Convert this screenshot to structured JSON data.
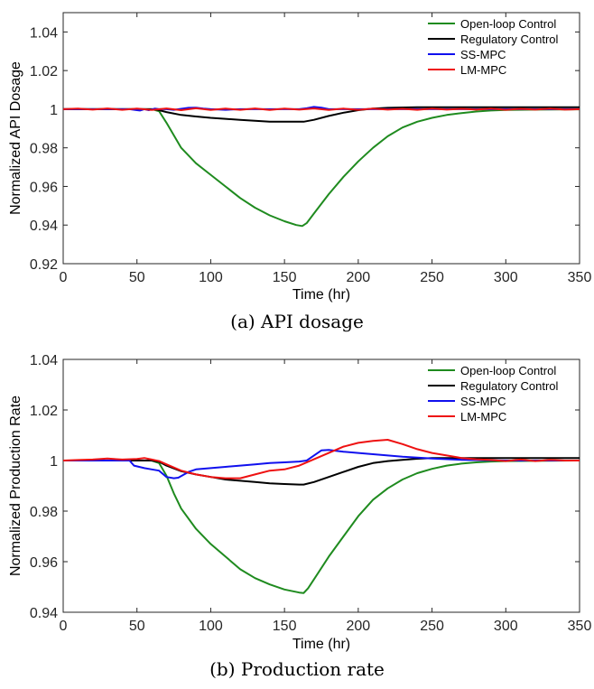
{
  "chart_data": [
    {
      "type": "line",
      "caption": "(a)  API dosage",
      "xlabel": "Time (hr)",
      "ylabel": "Normalized API Dosage",
      "xlim": [
        0,
        350
      ],
      "ylim": [
        0.92,
        1.05
      ],
      "xticks": [
        "0",
        "50",
        "100",
        "150",
        "200",
        "250",
        "300",
        "350"
      ],
      "yticks": [
        "0.92",
        "0.94",
        "0.96",
        "0.98",
        "1",
        "1.02",
        "1.04"
      ],
      "grid": false,
      "legend_position": "top-right",
      "series": [
        {
          "name": "Open-loop Control",
          "color": "#1f8b1f",
          "x": [
            0,
            60,
            65,
            70,
            80,
            90,
            100,
            110,
            120,
            130,
            140,
            150,
            158,
            162,
            165,
            170,
            180,
            190,
            200,
            210,
            220,
            230,
            240,
            250,
            260,
            270,
            280,
            290,
            300,
            320,
            350
          ],
          "y": [
            1,
            1,
            0.999,
            0.993,
            0.98,
            0.972,
            0.966,
            0.96,
            0.954,
            0.949,
            0.945,
            0.942,
            0.94,
            0.9395,
            0.941,
            0.946,
            0.956,
            0.965,
            0.973,
            0.98,
            0.986,
            0.9905,
            0.9935,
            0.9955,
            0.997,
            0.998,
            0.9988,
            0.9993,
            0.9996,
            0.9998,
            0.9999
          ]
        },
        {
          "name": "Regulatory Control",
          "color": "#000000",
          "x": [
            0,
            60,
            65,
            70,
            80,
            90,
            100,
            110,
            120,
            140,
            160,
            163,
            170,
            180,
            190,
            200,
            210,
            220,
            240,
            260,
            300,
            350
          ],
          "y": [
            1,
            1,
            0.9995,
            0.9985,
            0.997,
            0.9962,
            0.9955,
            0.995,
            0.9945,
            0.9935,
            0.9935,
            0.9935,
            0.9945,
            0.9965,
            0.9982,
            0.9995,
            1.0003,
            1.0007,
            1.001,
            1.001,
            1.001,
            1.001
          ]
        },
        {
          "name": "SS-MPC",
          "color": "#1010ee",
          "x": [
            0,
            45,
            50,
            52,
            55,
            58,
            62,
            65,
            70,
            75,
            80,
            85,
            90,
            95,
            100,
            110,
            120,
            140,
            160,
            165,
            170,
            175,
            180,
            190,
            200,
            250,
            300,
            350
          ],
          "y": [
            1,
            1,
            0.9995,
            0.9993,
            1.0,
            0.9995,
            1.0003,
            1.0,
            1.0,
            0.9997,
            1.0002,
            1.0007,
            1.0008,
            1.0003,
            1.0,
            0.9997,
            1.0,
            1.0,
            1.0,
            1.0005,
            1.0012,
            1.0008,
            1.0,
            1.0,
            1.0,
            1.0,
            1.0,
            1.0
          ]
        },
        {
          "name": "LM-MPC",
          "color": "#ee1111",
          "x": [
            0,
            10,
            20,
            30,
            40,
            50,
            60,
            70,
            80,
            90,
            100,
            110,
            120,
            130,
            140,
            150,
            160,
            170,
            180,
            190,
            200,
            210,
            220,
            230,
            240,
            250,
            260,
            270,
            280,
            290,
            300,
            310,
            320,
            330,
            340,
            350
          ],
          "y": [
            1,
            1.0003,
            0.9998,
            1.0004,
            0.9997,
            1.0003,
            0.9996,
            1.0004,
            0.9995,
            1.0005,
            0.9996,
            1.0003,
            0.9997,
            1.0004,
            0.9996,
            1.0003,
            0.9998,
            1.0004,
            0.9996,
            1.0003,
            0.9997,
            1.0003,
            0.9998,
            1.0002,
            0.9997,
            1.0003,
            0.9998,
            1.0002,
            0.9998,
            1.0003,
            0.9997,
            1.0002,
            0.9998,
            1.0003,
            0.9998,
            1.0
          ]
        }
      ]
    },
    {
      "type": "line",
      "caption": "(b)  Production rate",
      "xlabel": "Time (hr)",
      "ylabel": "Normalized Production Rate",
      "xlim": [
        0,
        350
      ],
      "ylim": [
        0.94,
        1.04
      ],
      "xticks": [
        "0",
        "50",
        "100",
        "150",
        "200",
        "250",
        "300",
        "350"
      ],
      "yticks": [
        "0.94",
        "0.96",
        "0.98",
        "1",
        "1.02",
        "1.04"
      ],
      "grid": false,
      "legend_position": "top-right",
      "series": [
        {
          "name": "Open-loop Control",
          "color": "#1f8b1f",
          "x": [
            0,
            60,
            65,
            70,
            75,
            80,
            90,
            100,
            110,
            120,
            130,
            140,
            150,
            160,
            163,
            166,
            170,
            180,
            190,
            200,
            210,
            220,
            230,
            240,
            250,
            260,
            270,
            280,
            290,
            300,
            350
          ],
          "y": [
            1,
            1,
            0.999,
            0.994,
            0.987,
            0.981,
            0.973,
            0.967,
            0.962,
            0.957,
            0.9535,
            0.951,
            0.949,
            0.9478,
            0.9476,
            0.9495,
            0.953,
            0.962,
            0.97,
            0.978,
            0.9845,
            0.989,
            0.9925,
            0.995,
            0.9967,
            0.998,
            0.9988,
            0.9993,
            0.9996,
            0.9998,
            1.0
          ]
        },
        {
          "name": "Regulatory Control",
          "color": "#000000",
          "x": [
            0,
            60,
            65,
            70,
            80,
            90,
            100,
            110,
            120,
            130,
            140,
            150,
            160,
            163,
            170,
            180,
            190,
            200,
            210,
            220,
            230,
            240,
            250,
            300,
            350
          ],
          "y": [
            1,
            1,
            0.9995,
            0.998,
            0.9958,
            0.9945,
            0.9935,
            0.9925,
            0.992,
            0.9915,
            0.991,
            0.9907,
            0.9905,
            0.9905,
            0.9915,
            0.9935,
            0.9955,
            0.9975,
            0.999,
            0.9998,
            1.0003,
            1.0007,
            1.001,
            1.001,
            1.001
          ]
        },
        {
          "name": "SS-MPC",
          "color": "#1010ee",
          "x": [
            0,
            45,
            48,
            55,
            60,
            65,
            70,
            75,
            78,
            85,
            90,
            100,
            110,
            120,
            130,
            140,
            150,
            160,
            165,
            170,
            175,
            180,
            190,
            200,
            210,
            230,
            250,
            270,
            300,
            350
          ],
          "y": [
            1,
            1,
            0.998,
            0.997,
            0.9965,
            0.996,
            0.9935,
            0.993,
            0.9932,
            0.9955,
            0.9965,
            0.997,
            0.9975,
            0.998,
            0.9985,
            0.999,
            0.9993,
            0.9996,
            1.0,
            1.002,
            1.004,
            1.0042,
            1.0035,
            1.003,
            1.0025,
            1.0015,
            1.0008,
            1.0003,
            1.0,
            1.0
          ]
        },
        {
          "name": "LM-MPC",
          "color": "#ee1111",
          "x": [
            0,
            10,
            20,
            30,
            40,
            50,
            55,
            60,
            65,
            70,
            80,
            90,
            100,
            110,
            120,
            130,
            140,
            150,
            160,
            170,
            180,
            190,
            200,
            210,
            220,
            230,
            240,
            250,
            260,
            270,
            280,
            290,
            300,
            310,
            320,
            330,
            340,
            350
          ],
          "y": [
            1,
            1.0002,
            1.0004,
            1.0008,
            1.0004,
            1.0006,
            1.001,
            1.0004,
            0.9998,
            0.9985,
            0.996,
            0.9945,
            0.9935,
            0.993,
            0.993,
            0.9945,
            0.996,
            0.9965,
            0.998,
            1.0005,
            1.003,
            1.0055,
            1.007,
            1.0078,
            1.0082,
            1.0065,
            1.0045,
            1.003,
            1.002,
            1.001,
            1.0005,
            1.0002,
            0.9998,
            1.0004,
            0.9998,
            1.0003,
            1.0,
            1.0
          ]
        }
      ]
    }
  ]
}
